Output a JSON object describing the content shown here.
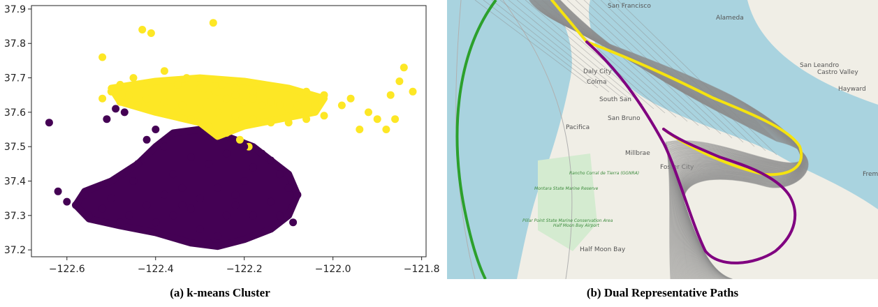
{
  "panel_a": {
    "caption": "(a) k-means Cluster"
  },
  "panel_b": {
    "caption": "(b) Dual Representative Paths",
    "map_labels": [
      "San Francisco",
      "Alameda",
      "San Leandro",
      "Castro Valley",
      "Hayward",
      "Daly City",
      "Colma",
      "South San",
      "San Bruno",
      "Pacifica",
      "Millbrae",
      "Foster City",
      "Half Moon Bay",
      "Fremo"
    ],
    "park_labels": [
      "Montara State Marine Reserve",
      "Rancho Corral de Tierra (GGNRA)",
      "Pillar Point State Marine Conservation Area",
      "Half Moon Bay Airport"
    ],
    "colors": {
      "path_1": "#f5e30f",
      "path_2": "#800080",
      "tracks": "#8c8c8c",
      "boundary": "#2ca02c",
      "water": "#a9d3df",
      "land": "#f0eee6"
    }
  },
  "chart_data": [
    {
      "type": "scatter",
      "title": "",
      "xlabel": "",
      "ylabel": "",
      "xlim": [
        -122.68,
        -121.79
      ],
      "ylim": [
        37.18,
        37.91
      ],
      "xticks": [
        -122.6,
        -122.4,
        -122.2,
        -122.0,
        -121.8
      ],
      "xtick_labels": [
        "−122.6",
        "−122.4",
        "−122.2",
        "−122.0",
        "−121.8"
      ],
      "yticks": [
        37.2,
        37.3,
        37.4,
        37.5,
        37.6,
        37.7,
        37.8,
        37.9
      ],
      "ytick_labels": [
        "37.2",
        "37.3",
        "37.4",
        "37.5",
        "37.6",
        "37.7",
        "37.8",
        "37.9"
      ],
      "grid": false,
      "series": [
        {
          "color": "#fde725",
          "points": [
            [
              -122.27,
              37.86
            ],
            [
              -122.43,
              37.84
            ],
            [
              -122.41,
              37.83
            ],
            [
              -122.52,
              37.76
            ],
            [
              -122.38,
              37.72
            ],
            [
              -122.33,
              37.7
            ],
            [
              -122.45,
              37.7
            ],
            [
              -122.48,
              37.68
            ],
            [
              -122.35,
              37.68
            ],
            [
              -122.3,
              37.67
            ],
            [
              -122.25,
              37.68
            ],
            [
              -122.22,
              37.67
            ],
            [
              -122.18,
              37.66
            ],
            [
              -122.12,
              37.67
            ],
            [
              -122.06,
              37.66
            ],
            [
              -122.02,
              37.65
            ],
            [
              -121.96,
              37.64
            ],
            [
              -121.92,
              37.6
            ],
            [
              -121.9,
              37.58
            ],
            [
              -121.88,
              37.55
            ],
            [
              -121.87,
              37.65
            ],
            [
              -121.85,
              37.69
            ],
            [
              -121.84,
              37.73
            ],
            [
              -121.82,
              37.66
            ],
            [
              -122.5,
              37.66
            ],
            [
              -122.46,
              37.65
            ],
            [
              -122.42,
              37.64
            ],
            [
              -122.38,
              37.63
            ],
            [
              -122.34,
              37.62
            ],
            [
              -122.3,
              37.61
            ],
            [
              -122.26,
              37.6
            ],
            [
              -122.22,
              37.59
            ],
            [
              -122.18,
              37.58
            ],
            [
              -122.14,
              37.57
            ],
            [
              -122.1,
              37.57
            ],
            [
              -122.06,
              37.58
            ],
            [
              -122.02,
              37.59
            ],
            [
              -121.98,
              37.62
            ],
            [
              -122.28,
              37.65
            ],
            [
              -122.24,
              37.64
            ],
            [
              -122.2,
              37.63
            ],
            [
              -122.16,
              37.62
            ],
            [
              -122.12,
              37.62
            ],
            [
              -122.08,
              37.62
            ],
            [
              -122.04,
              37.62
            ],
            [
              -122.26,
              37.66
            ],
            [
              -122.22,
              37.65
            ],
            [
              -122.18,
              37.64
            ],
            [
              -122.14,
              37.63
            ],
            [
              -122.1,
              37.61
            ],
            [
              -122.36,
              37.6
            ],
            [
              -122.32,
              37.58
            ],
            [
              -122.28,
              37.56
            ],
            [
              -122.24,
              37.54
            ],
            [
              -122.21,
              37.52
            ],
            [
              -122.19,
              37.5
            ],
            [
              -122.44,
              37.62
            ],
            [
              -122.4,
              37.61
            ],
            [
              -122.52,
              37.64
            ],
            [
              -122.48,
              37.63
            ],
            [
              -121.94,
              37.55
            ],
            [
              -121.86,
              37.58
            ]
          ]
        },
        {
          "color": "#440154",
          "points": [
            [
              -122.64,
              37.57
            ],
            [
              -122.62,
              37.37
            ],
            [
              -122.6,
              37.34
            ],
            [
              -122.58,
              37.33
            ],
            [
              -122.56,
              37.36
            ],
            [
              -122.55,
              37.3
            ],
            [
              -122.52,
              37.32
            ],
            [
              -122.5,
              37.35
            ],
            [
              -122.48,
              37.28
            ],
            [
              -122.46,
              37.3
            ],
            [
              -122.45,
              37.4
            ],
            [
              -122.44,
              37.45
            ],
            [
              -122.42,
              37.52
            ],
            [
              -122.4,
              37.55
            ],
            [
              -122.38,
              37.5
            ],
            [
              -122.36,
              37.42
            ],
            [
              -122.34,
              37.38
            ],
            [
              -122.32,
              37.32
            ],
            [
              -122.3,
              37.26
            ],
            [
              -122.28,
              37.22
            ],
            [
              -122.26,
              37.24
            ],
            [
              -122.24,
              37.3
            ],
            [
              -122.22,
              37.36
            ],
            [
              -122.2,
              37.4
            ],
            [
              -122.18,
              37.44
            ],
            [
              -122.16,
              37.48
            ],
            [
              -122.14,
              37.46
            ],
            [
              -122.12,
              37.42
            ],
            [
              -122.1,
              37.38
            ],
            [
              -122.08,
              37.36
            ],
            [
              -122.09,
              37.28
            ],
            [
              -122.12,
              37.3
            ],
            [
              -122.47,
              37.6
            ],
            [
              -122.49,
              37.61
            ],
            [
              -122.51,
              37.58
            ],
            [
              -122.38,
              37.36
            ],
            [
              -122.34,
              37.33
            ],
            [
              -122.3,
              37.35
            ],
            [
              -122.26,
              37.38
            ],
            [
              -122.22,
              37.33
            ],
            [
              -122.18,
              37.3
            ],
            [
              -122.14,
              37.34
            ],
            [
              -122.28,
              37.45
            ],
            [
              -122.24,
              37.48
            ],
            [
              -122.2,
              37.5
            ],
            [
              -122.32,
              37.47
            ],
            [
              -122.36,
              37.3
            ],
            [
              -122.42,
              37.33
            ],
            [
              -122.4,
              37.28
            ]
          ]
        }
      ]
    }
  ]
}
